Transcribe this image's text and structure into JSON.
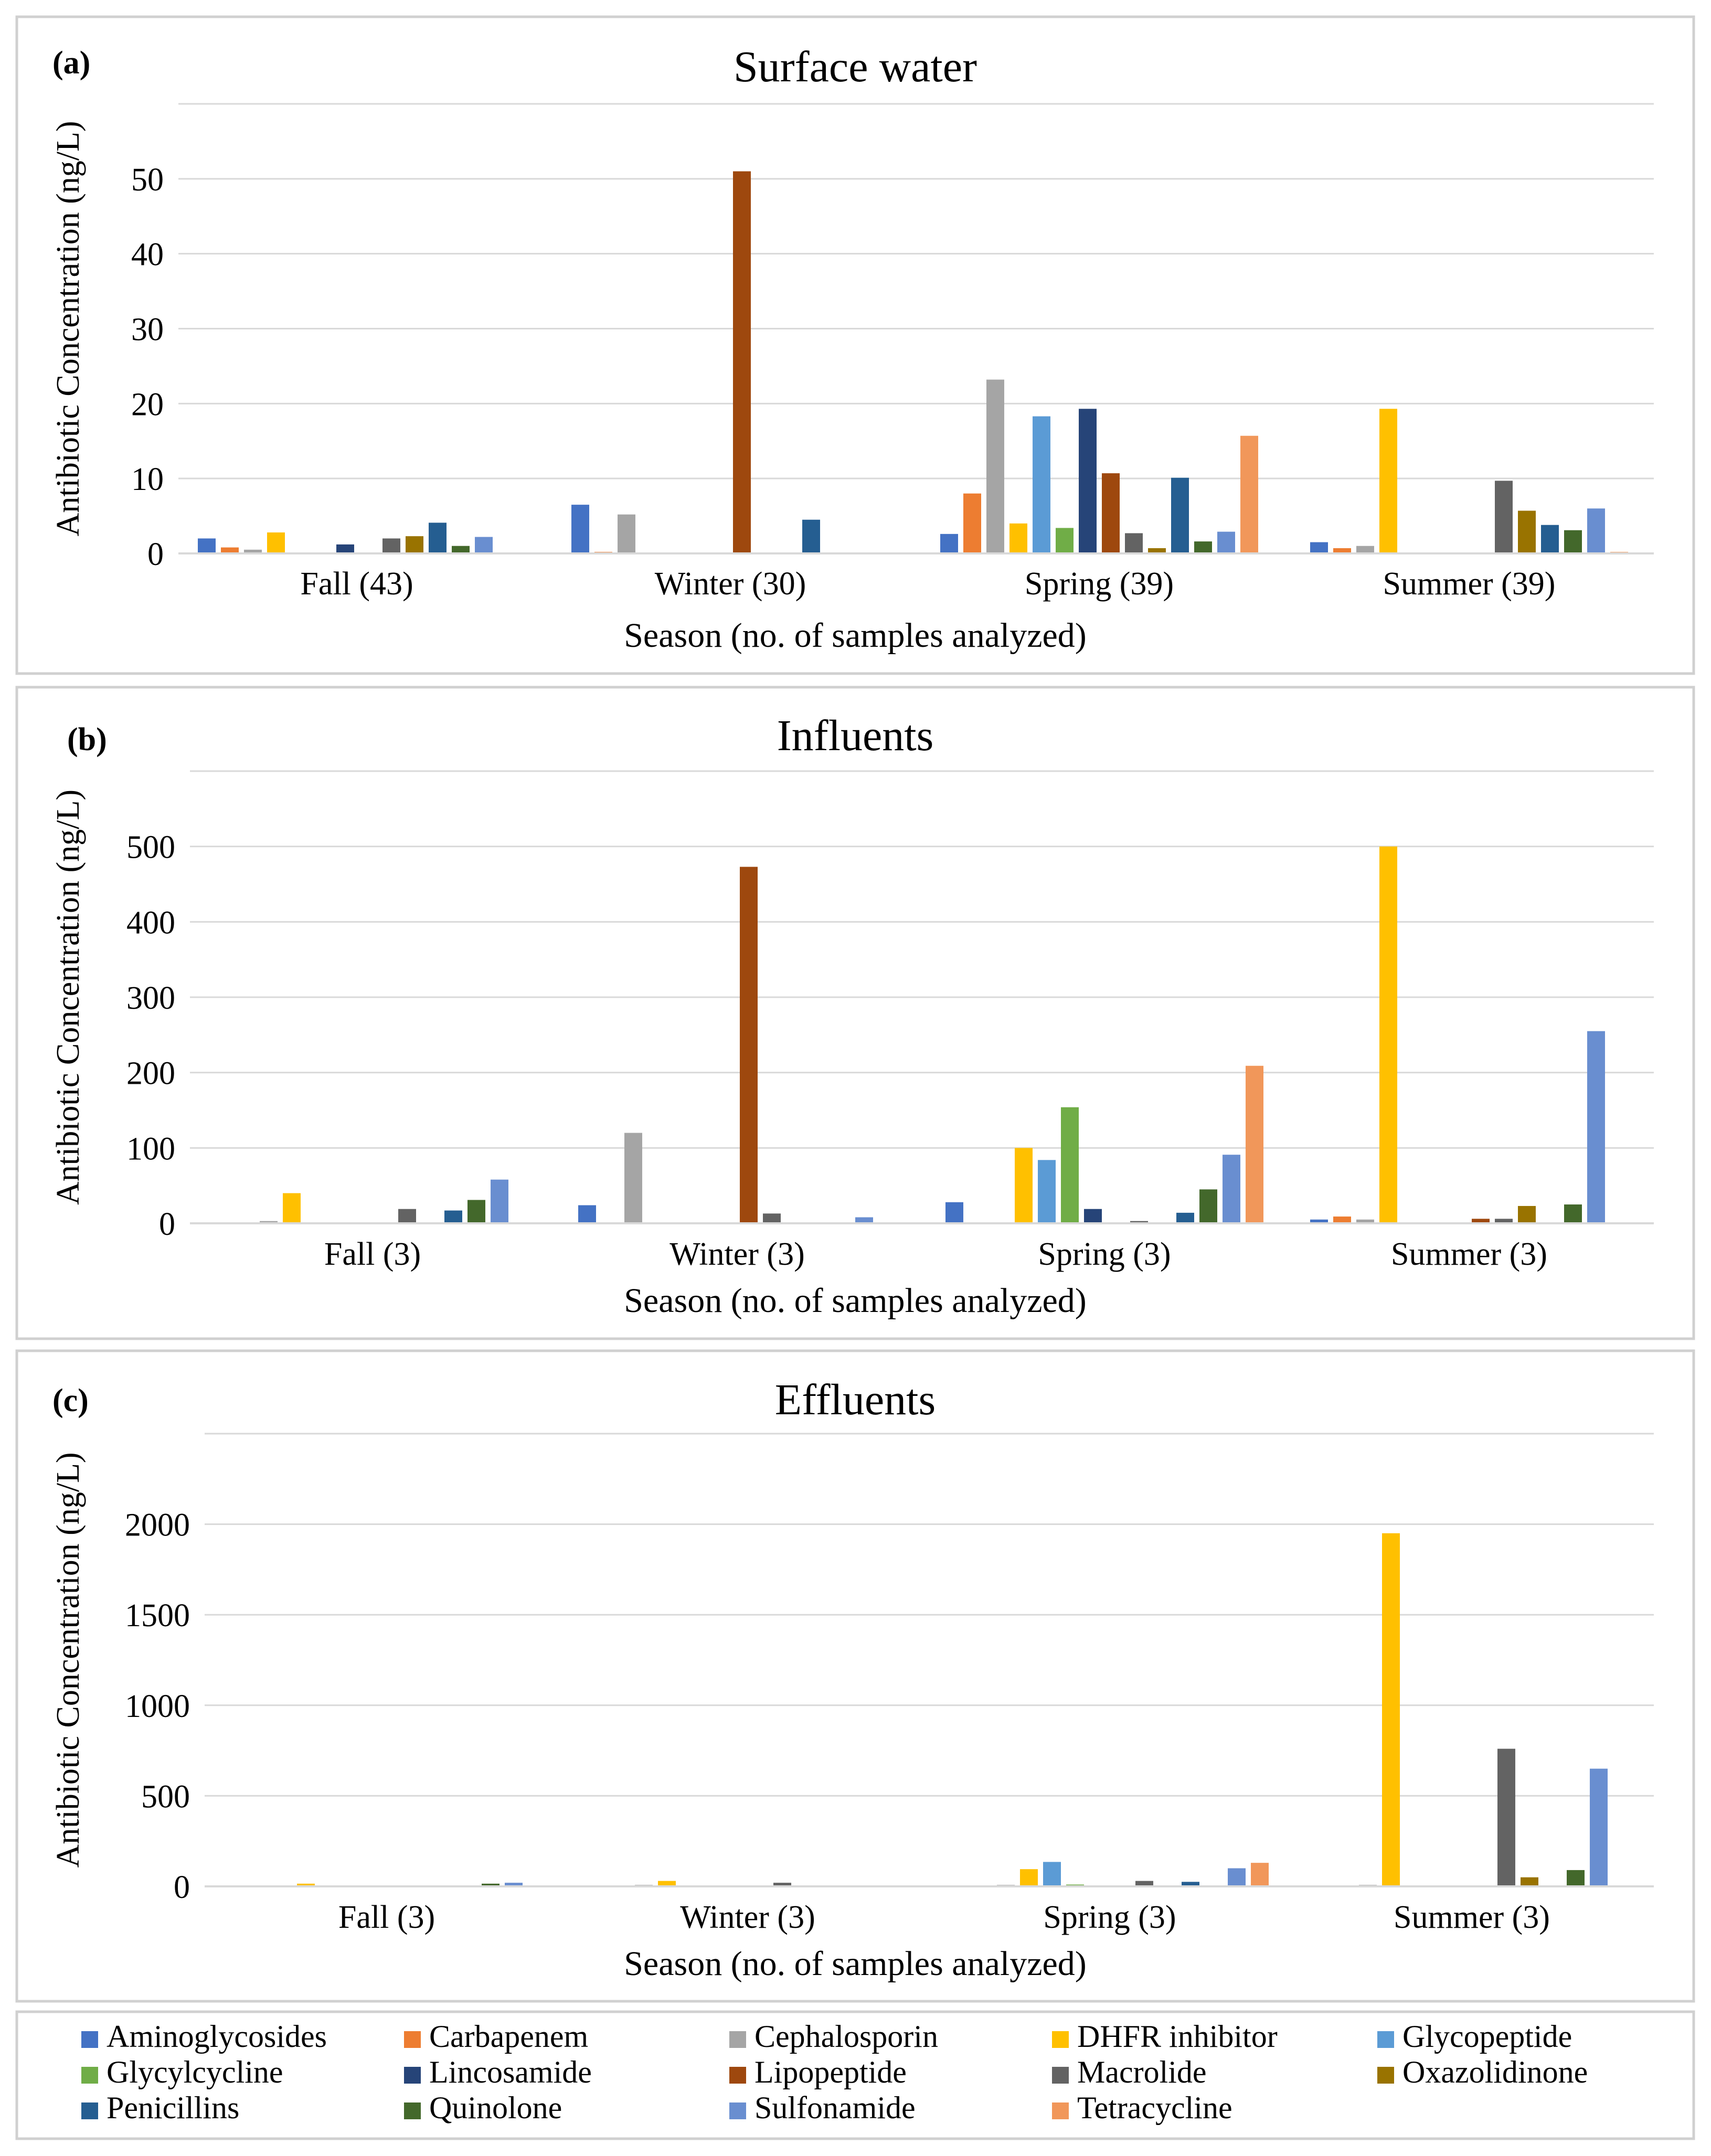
{
  "chart_data": [
    {
      "type": "bar",
      "panel_label": "(a)",
      "title": "Surface water",
      "xlabel": "Season (no. of samples analyzed)",
      "ylabel": "Antibiotic Concentration (ng/L)",
      "ylim": [
        0,
        60
      ],
      "yticks": [
        0,
        10,
        20,
        30,
        40,
        50
      ],
      "categories": [
        "Fall (43)",
        "Winter (30)",
        "Spring (39)",
        "Summer (39)"
      ],
      "series": [
        {
          "name": "Aminoglycosides",
          "values": [
            2.0,
            6.5,
            2.6,
            1.5
          ]
        },
        {
          "name": "Carbapenem",
          "values": [
            0.8,
            0.2,
            8.0,
            0.7
          ]
        },
        {
          "name": "Cephalosporin",
          "values": [
            0.5,
            5.2,
            23.2,
            1.0
          ]
        },
        {
          "name": "DHFR inhibitor",
          "values": [
            2.8,
            0,
            4.0,
            19.3
          ]
        },
        {
          "name": "Glycopeptide",
          "values": [
            0,
            0,
            18.3,
            0
          ]
        },
        {
          "name": "Glycylcycline",
          "values": [
            0,
            0,
            3.4,
            0
          ]
        },
        {
          "name": "Lincosamide",
          "values": [
            1.2,
            0,
            19.3,
            0
          ]
        },
        {
          "name": "Lipopeptide",
          "values": [
            0,
            51.0,
            10.7,
            0
          ]
        },
        {
          "name": "Macrolide",
          "values": [
            2.0,
            0,
            2.7,
            9.7
          ]
        },
        {
          "name": "Oxazolidinone",
          "values": [
            2.3,
            0,
            0.7,
            5.7
          ]
        },
        {
          "name": "Penicillins",
          "values": [
            4.1,
            4.5,
            10.1,
            3.8
          ]
        },
        {
          "name": "Quinolone",
          "values": [
            1.0,
            0,
            1.6,
            3.1
          ]
        },
        {
          "name": "Sulfonamide",
          "values": [
            2.2,
            0,
            2.9,
            6.0
          ]
        },
        {
          "name": "Tetracycline",
          "values": [
            0,
            0,
            15.7,
            0.2
          ]
        }
      ]
    },
    {
      "type": "bar",
      "panel_label": "(b)",
      "title": "Influents",
      "xlabel": "Season (no. of samples analyzed)",
      "ylabel": "Antibiotic Concentration (ng/L)",
      "ylim": [
        0,
        600
      ],
      "yticks": [
        0,
        100,
        200,
        300,
        400,
        500
      ],
      "categories": [
        "Fall (3)",
        "Winter (3)",
        "Spring (3)",
        "Summer (3)"
      ],
      "series": [
        {
          "name": "Aminoglycosides",
          "values": [
            0,
            24,
            28,
            5
          ]
        },
        {
          "name": "Carbapenem",
          "values": [
            0,
            0,
            0,
            9
          ]
        },
        {
          "name": "Cephalosporin",
          "values": [
            3,
            120,
            0,
            5
          ]
        },
        {
          "name": "DHFR inhibitor",
          "values": [
            40,
            0,
            100,
            500
          ]
        },
        {
          "name": "Glycopeptide",
          "values": [
            0,
            0,
            84,
            0
          ]
        },
        {
          "name": "Glycylcycline",
          "values": [
            0,
            0,
            154,
            0
          ]
        },
        {
          "name": "Lincosamide",
          "values": [
            0,
            0,
            19,
            0
          ]
        },
        {
          "name": "Lipopeptide",
          "values": [
            0,
            473,
            0,
            6
          ]
        },
        {
          "name": "Macrolide",
          "values": [
            19,
            13,
            3,
            6
          ]
        },
        {
          "name": "Oxazolidinone",
          "values": [
            0,
            0,
            0,
            23
          ]
        },
        {
          "name": "Penicillins",
          "values": [
            17,
            0,
            14,
            0
          ]
        },
        {
          "name": "Quinolone",
          "values": [
            31,
            0,
            45,
            25
          ]
        },
        {
          "name": "Sulfonamide",
          "values": [
            58,
            8,
            91,
            255
          ]
        },
        {
          "name": "Tetracycline",
          "values": [
            0,
            0,
            209,
            0
          ]
        }
      ]
    },
    {
      "type": "bar",
      "panel_label": "(c)",
      "title": "Effluents",
      "xlabel": "Season (no. of samples analyzed)",
      "ylabel": "Antibiotic Concentration (ng/L)",
      "ylim": [
        0,
        2500
      ],
      "yticks": [
        0,
        500,
        1000,
        1500,
        2000
      ],
      "categories": [
        "Fall (3)",
        "Winter (3)",
        "Spring (3)",
        "Summer (3)"
      ],
      "series": [
        {
          "name": "Aminoglycosides",
          "values": [
            0,
            0,
            0,
            0
          ]
        },
        {
          "name": "Carbapenem",
          "values": [
            0,
            0,
            0,
            0
          ]
        },
        {
          "name": "Cephalosporin",
          "values": [
            0,
            8,
            8,
            8
          ]
        },
        {
          "name": "DHFR inhibitor",
          "values": [
            15,
            30,
            95,
            1950
          ]
        },
        {
          "name": "Glycopeptide",
          "values": [
            0,
            0,
            135,
            0
          ]
        },
        {
          "name": "Glycylcycline",
          "values": [
            0,
            0,
            10,
            0
          ]
        },
        {
          "name": "Lincosamide",
          "values": [
            0,
            0,
            0,
            0
          ]
        },
        {
          "name": "Lipopeptide",
          "values": [
            0,
            0,
            0,
            0
          ]
        },
        {
          "name": "Macrolide",
          "values": [
            0,
            20,
            30,
            760
          ]
        },
        {
          "name": "Oxazolidinone",
          "values": [
            0,
            0,
            0,
            50
          ]
        },
        {
          "name": "Penicillins",
          "values": [
            0,
            0,
            25,
            0
          ]
        },
        {
          "name": "Quinolone",
          "values": [
            15,
            0,
            0,
            90
          ]
        },
        {
          "name": "Sulfonamide",
          "values": [
            20,
            0,
            100,
            650
          ]
        },
        {
          "name": "Tetracycline",
          "values": [
            0,
            0,
            130,
            0
          ]
        }
      ]
    }
  ],
  "legend": {
    "colors": {
      "Aminoglycosides": "#4472C4",
      "Carbapenem": "#ED7D31",
      "Cephalosporin": "#A5A5A5",
      "DHFR inhibitor": "#FFC000",
      "Glycopeptide": "#5B9BD5",
      "Glycylcycline": "#70AD47",
      "Lincosamide": "#264478",
      "Lipopeptide": "#9E480E",
      "Macrolide": "#636363",
      "Oxazolidinone": "#997300",
      "Penicillins": "#255E91",
      "Quinolone": "#43682B",
      "Sulfonamide": "#698ED0",
      "Tetracycline": "#F1975A"
    }
  }
}
